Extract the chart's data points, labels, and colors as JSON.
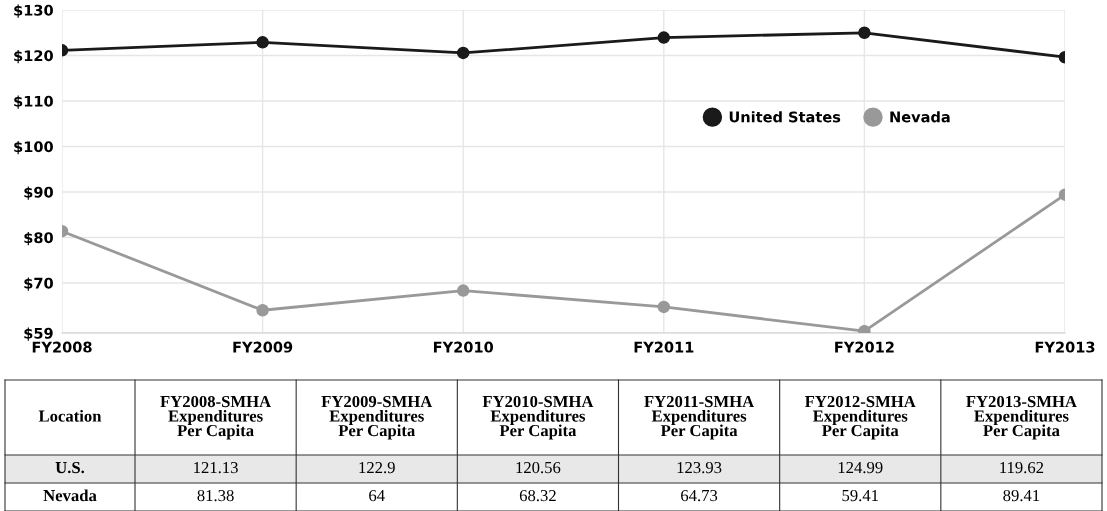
{
  "chart_data": [
    {
      "type": "line",
      "categories": [
        "FY2008",
        "FY2009",
        "FY2010",
        "FY2011",
        "FY2012",
        "FY2013"
      ],
      "series": [
        {
          "name": "United States",
          "color": "#1a1a1a",
          "values": [
            121.13,
            122.9,
            120.56,
            123.93,
            124.99,
            119.62
          ]
        },
        {
          "name": "Nevada",
          "color": "#999999",
          "values": [
            81.38,
            64,
            68.32,
            64.73,
            59.41,
            89.41
          ]
        }
      ],
      "ylim": [
        59,
        130
      ],
      "yticks": [
        {
          "value": 59,
          "label": "$59"
        },
        {
          "value": 70,
          "label": "$70"
        },
        {
          "value": 80,
          "label": "$80"
        },
        {
          "value": 90,
          "label": "$90"
        },
        {
          "value": 100,
          "label": "$100"
        },
        {
          "value": 110,
          "label": "$110"
        },
        {
          "value": 120,
          "label": "$120"
        },
        {
          "value": 130,
          "label": "$130"
        }
      ],
      "grid": true,
      "legend": "right",
      "marker": "circle",
      "line_style": "solid"
    },
    {
      "type": "other",
      "categories": [
        "FY2008-SMHA\nExpenditures\nPer Capita",
        "FY2009-SMHA\nExpenditures\nPer Capita",
        "FY2010-SMHA\nExpenditures\nPer Capita",
        "FY2011-SMHA\nExpenditures\nPer Capita",
        "FY2012-SMHA\nExpenditures\nPer Capita",
        "FY2013-SMHA\nExpenditures\nPer Capita"
      ],
      "series": [
        {
          "name": "U.S.",
          "color": "#e8e8e8",
          "values": [
            121.13,
            122.9,
            120.56,
            123.93,
            124.99,
            119.62
          ]
        },
        {
          "name": "Nevada",
          "values": [
            81.38,
            64,
            68.32,
            64.73,
            59.41,
            89.41
          ]
        }
      ],
      "data_labels": true,
      "annotations": [
        "Location"
      ]
    }
  ]
}
